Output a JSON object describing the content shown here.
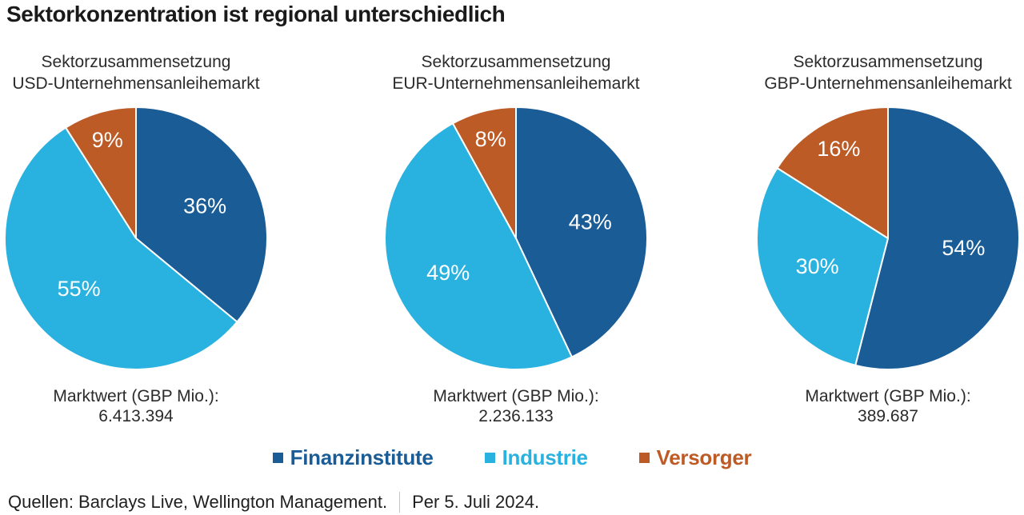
{
  "page_title": "Sektorkonzentration ist regional unterschiedlich",
  "colors": {
    "finanzinstitute": "#1A5C96",
    "industrie": "#29B2E0",
    "versorger": "#BD5B27",
    "slice_label": "#ffffff"
  },
  "chart_data": [
    {
      "type": "pie",
      "title": [
        "Sektorzusammensetzung",
        "USD-Unternehmensanleihemarkt"
      ],
      "labels": [
        "Finanzinstitute",
        "Industrie",
        "Versorger"
      ],
      "values": [
        36,
        55,
        9
      ],
      "value_labels": [
        "36%",
        "55%",
        "9%"
      ],
      "market_value_label": "Marktwert (GBP Mio.):",
      "market_value": "6.413.394"
    },
    {
      "type": "pie",
      "title": [
        "Sektorzusammensetzung",
        "EUR-Unternehmensanleihemarkt"
      ],
      "labels": [
        "Finanzinstitute",
        "Industrie",
        "Versorger"
      ],
      "values": [
        43,
        49,
        8
      ],
      "value_labels": [
        "43%",
        "49%",
        "8%"
      ],
      "market_value_label": "Marktwert (GBP Mio.):",
      "market_value": "2.236.133"
    },
    {
      "type": "pie",
      "title": [
        "Sektorzusammensetzung",
        "GBP-Unternehmensanleihemarkt"
      ],
      "labels": [
        "Finanzinstitute",
        "Industrie",
        "Versorger"
      ],
      "values": [
        54,
        30,
        16
      ],
      "value_labels": [
        "54%",
        "30%",
        "16%"
      ],
      "market_value_label": "Marktwert (GBP Mio.):",
      "market_value": "389.687"
    }
  ],
  "legend": {
    "items": [
      {
        "label": "Finanzinstitute",
        "color": "#1A5C96"
      },
      {
        "label": "Industrie",
        "color": "#29B2E0"
      },
      {
        "label": "Versorger",
        "color": "#BD5B27"
      }
    ]
  },
  "footer": {
    "sources": "Quellen: Barclays Live, Wellington Management.",
    "date": "Per 5. Juli 2024."
  }
}
